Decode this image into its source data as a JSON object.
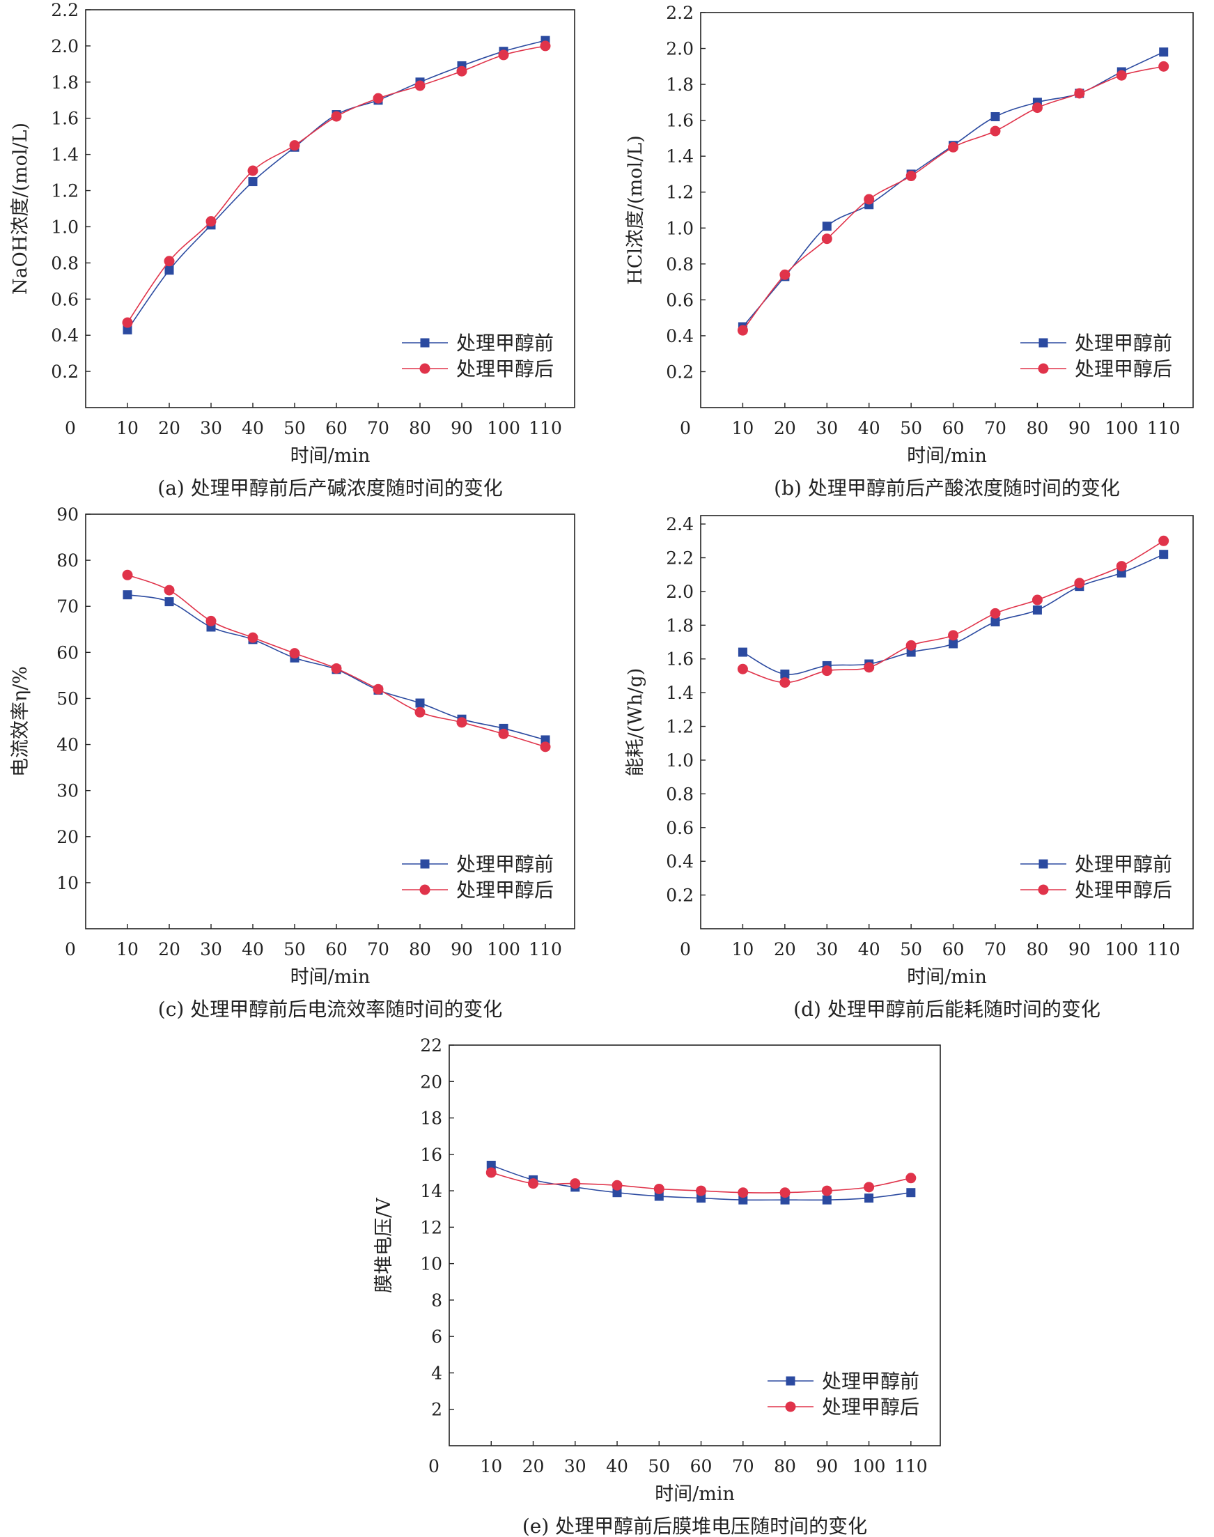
{
  "colors": {
    "before": "#2b4aa0",
    "after": "#e0334a",
    "axis": "#222222"
  },
  "legend": {
    "before": "处理甲醇前",
    "after": "处理甲醇后"
  },
  "chart_data": [
    {
      "id": "a",
      "type": "line",
      "caption": "(a) 处理甲醇前后产碱浓度随时间的变化",
      "xlabel": "时间/min",
      "ylabel": "NaOH浓度/(mol/L)",
      "xlim": [
        0,
        117
      ],
      "ylim": [
        0,
        2.2
      ],
      "x": [
        10,
        20,
        30,
        40,
        50,
        60,
        70,
        80,
        90,
        100,
        110
      ],
      "yticks": [
        0.2,
        0.4,
        0.6,
        0.8,
        1.0,
        1.2,
        1.4,
        1.6,
        1.8,
        2.0,
        2.2
      ],
      "decimals": 1,
      "legend_pos": "bottom-right",
      "series": [
        {
          "name": "处理甲醇前",
          "marker": "square",
          "values": [
            0.43,
            0.76,
            1.01,
            1.25,
            1.44,
            1.62,
            1.7,
            1.8,
            1.89,
            1.97,
            2.03
          ]
        },
        {
          "name": "处理甲醇后",
          "marker": "circle",
          "values": [
            0.47,
            0.81,
            1.03,
            1.31,
            1.45,
            1.61,
            1.71,
            1.78,
            1.86,
            1.95,
            2.0
          ]
        }
      ]
    },
    {
      "id": "b",
      "type": "line",
      "caption": "(b) 处理甲醇前后产酸浓度随时间的变化",
      "xlabel": "时间/min",
      "ylabel": "HCl浓度/(mol/L)",
      "xlim": [
        0,
        117
      ],
      "ylim": [
        0,
        2.2
      ],
      "x": [
        10,
        20,
        30,
        40,
        50,
        60,
        70,
        80,
        90,
        100,
        110
      ],
      "yticks": [
        0.2,
        0.4,
        0.6,
        0.8,
        1.0,
        1.2,
        1.4,
        1.6,
        1.8,
        2.0,
        2.2
      ],
      "decimals": 1,
      "legend_pos": "bottom-right",
      "series": [
        {
          "name": "处理甲醇前",
          "marker": "square",
          "values": [
            0.45,
            0.73,
            1.01,
            1.13,
            1.3,
            1.46,
            1.62,
            1.7,
            1.75,
            1.87,
            1.98
          ]
        },
        {
          "name": "处理甲醇后",
          "marker": "circle",
          "values": [
            0.43,
            0.74,
            0.94,
            1.16,
            1.29,
            1.45,
            1.54,
            1.67,
            1.75,
            1.85,
            1.9
          ]
        }
      ]
    },
    {
      "id": "c",
      "type": "line",
      "caption": "(c) 处理甲醇前后电流效率随时间的变化",
      "xlabel": "时间/min",
      "ylabel": "电流效率η/%",
      "xlim": [
        0,
        117
      ],
      "ylim": [
        0,
        90
      ],
      "x": [
        10,
        20,
        30,
        40,
        50,
        60,
        70,
        80,
        90,
        100,
        110
      ],
      "yticks": [
        10,
        20,
        30,
        40,
        50,
        60,
        70,
        80,
        90
      ],
      "decimals": 0,
      "legend_pos": "bottom-right",
      "series": [
        {
          "name": "处理甲醇前",
          "marker": "square",
          "values": [
            72.5,
            71.0,
            65.5,
            62.8,
            58.8,
            56.3,
            51.8,
            49.0,
            45.5,
            43.5,
            41.0
          ]
        },
        {
          "name": "处理甲醇后",
          "marker": "circle",
          "values": [
            76.8,
            73.5,
            66.8,
            63.2,
            59.8,
            56.5,
            52.0,
            47.0,
            44.8,
            42.3,
            39.5
          ]
        }
      ]
    },
    {
      "id": "d",
      "type": "line",
      "caption": "(d) 处理甲醇前后能耗随时间的变化",
      "xlabel": "时间/min",
      "ylabel": "能耗/(Wh/g)",
      "xlim": [
        0,
        117
      ],
      "ylim": [
        0,
        2.45
      ],
      "x": [
        10,
        20,
        30,
        40,
        50,
        60,
        70,
        80,
        90,
        100,
        110
      ],
      "yticks": [
        0.2,
        0.4,
        0.6,
        0.8,
        1.0,
        1.2,
        1.4,
        1.6,
        1.8,
        2.0,
        2.2,
        2.4
      ],
      "decimals": 1,
      "legend_pos": "bottom-right",
      "series": [
        {
          "name": "处理甲醇前",
          "marker": "square",
          "values": [
            1.64,
            1.51,
            1.56,
            1.57,
            1.64,
            1.69,
            1.82,
            1.89,
            2.03,
            2.11,
            2.22
          ]
        },
        {
          "name": "处理甲醇后",
          "marker": "circle",
          "values": [
            1.54,
            1.46,
            1.53,
            1.55,
            1.68,
            1.74,
            1.87,
            1.95,
            2.05,
            2.15,
            2.3
          ]
        }
      ]
    },
    {
      "id": "e",
      "type": "line",
      "caption": "(e) 处理甲醇前后膜堆电压随时间的变化",
      "xlabel": "时间/min",
      "ylabel": "膜堆电压/V",
      "xlim": [
        0,
        117
      ],
      "ylim": [
        0,
        22
      ],
      "x": [
        10,
        20,
        30,
        40,
        50,
        60,
        70,
        80,
        90,
        100,
        110
      ],
      "yticks": [
        2,
        4,
        6,
        8,
        10,
        12,
        14,
        16,
        18,
        20,
        22
      ],
      "decimals": 0,
      "legend_pos": "bottom-right",
      "series": [
        {
          "name": "处理甲醇前",
          "marker": "square",
          "values": [
            15.4,
            14.6,
            14.2,
            13.9,
            13.7,
            13.6,
            13.5,
            13.5,
            13.5,
            13.6,
            13.9
          ]
        },
        {
          "name": "处理甲醇后",
          "marker": "circle",
          "values": [
            15.0,
            14.4,
            14.4,
            14.3,
            14.1,
            14.0,
            13.9,
            13.9,
            14.0,
            14.2,
            14.7
          ]
        }
      ]
    }
  ]
}
